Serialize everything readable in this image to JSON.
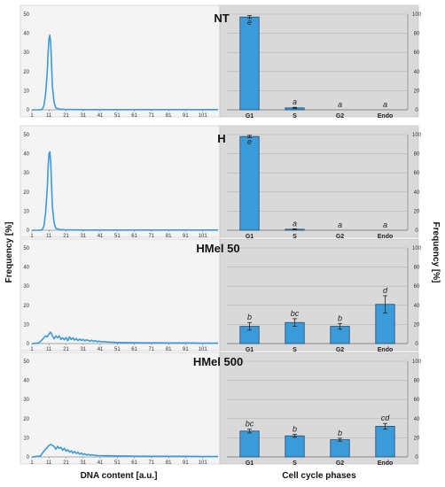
{
  "figure": {
    "y_axis_left": "Frequency [%]",
    "y_axis_right": "Frequency [%]",
    "x_axis_left": "DNA content [a.u.]",
    "x_axis_right": "Cell cycle phases"
  },
  "colors": {
    "series": "#3b9ad8",
    "bar_fill": "#3b9ad8",
    "bar_stroke": "#1d4f77",
    "left_bg": "#f4f4f4",
    "right_bg": "#d9d9d9",
    "grid": "#b3b3b3"
  },
  "chart_data": [
    {
      "type": "line",
      "title": "",
      "xlim": [
        1,
        110
      ],
      "ylim": [
        0,
        50
      ],
      "x_ticks": [
        "1",
        "11",
        "21",
        "31",
        "41",
        "51",
        "61",
        "71",
        "81",
        "91",
        "101"
      ],
      "y_ticks": [
        "0",
        "10",
        "20",
        "30",
        "40",
        "50"
      ],
      "series": [
        {
          "x": [
            1,
            6,
            7,
            8,
            9,
            10,
            10.5,
            11,
            11.5,
            12,
            12.5,
            13,
            14,
            15,
            17,
            20,
            30,
            50,
            110
          ],
          "y": [
            0,
            0,
            0.3,
            2,
            8,
            20,
            30,
            37,
            39,
            35,
            24,
            12,
            4,
            1,
            0.4,
            0.2,
            0.1,
            0.1,
            0.1
          ]
        }
      ]
    },
    {
      "type": "bar",
      "title": "NT",
      "categories": [
        "G1",
        "S",
        "G2",
        "Endo"
      ],
      "values": [
        97,
        2,
        0,
        0
      ],
      "errors": [
        1.5,
        0.6,
        0,
        0
      ],
      "significance": [
        "e",
        "a",
        "a",
        "a"
      ],
      "ylim": [
        0,
        100
      ],
      "y_ticks": [
        "0",
        "20",
        "40",
        "60",
        "80",
        "100"
      ]
    },
    {
      "type": "line",
      "title": "",
      "xlim": [
        1,
        110
      ],
      "ylim": [
        0,
        50
      ],
      "x_ticks": [
        "1",
        "11",
        "21",
        "31",
        "41",
        "51",
        "61",
        "71",
        "81",
        "91",
        "101"
      ],
      "y_ticks": [
        "0",
        "10",
        "20",
        "30",
        "40",
        "50"
      ],
      "series": [
        {
          "x": [
            1,
            6,
            7,
            8,
            9,
            10,
            10.5,
            11,
            11.5,
            12,
            12.5,
            13,
            14,
            15,
            17,
            20,
            30,
            50,
            110
          ],
          "y": [
            0,
            0,
            0.3,
            2,
            9,
            22,
            33,
            40,
            41,
            36,
            24,
            12,
            4,
            1,
            0.4,
            0.2,
            0.1,
            0.1,
            0.1
          ]
        }
      ]
    },
    {
      "type": "bar",
      "title": "H",
      "categories": [
        "G1",
        "S",
        "G2",
        "Endo"
      ],
      "values": [
        98,
        1,
        0,
        0
      ],
      "errors": [
        1.2,
        0.5,
        0,
        0
      ],
      "significance": [
        "e",
        "a",
        "a",
        "a"
      ],
      "ylim": [
        0,
        100
      ],
      "y_ticks": [
        "0",
        "20",
        "40",
        "60",
        "80",
        "100"
      ]
    },
    {
      "type": "line",
      "title": "",
      "xlim": [
        1,
        110
      ],
      "ylim": [
        0,
        50
      ],
      "x_ticks": [
        "1",
        "11",
        "21",
        "31",
        "41",
        "51",
        "61",
        "71",
        "81",
        "91",
        "101"
      ],
      "y_ticks": [
        "0",
        "10",
        "20",
        "30",
        "40",
        "50"
      ],
      "series": [
        {
          "x": [
            1,
            5,
            7,
            9,
            10,
            11,
            12,
            13,
            14,
            15,
            16,
            17,
            18,
            19,
            20,
            21,
            22,
            23,
            24,
            25,
            26,
            27,
            28,
            29,
            30,
            31,
            32,
            33,
            34,
            35,
            36,
            37,
            38,
            39,
            40,
            42,
            44,
            46,
            48,
            50,
            55,
            60,
            65,
            70,
            75,
            80,
            85,
            90,
            95,
            100,
            105,
            110
          ],
          "y": [
            0,
            0.3,
            2,
            4,
            3.5,
            5,
            6,
            4,
            2.5,
            4,
            3,
            4,
            2.2,
            3,
            2,
            3.2,
            1.5,
            3.5,
            2.1,
            3,
            1.8,
            2.6,
            1.5,
            2.4,
            1.6,
            2.2,
            1.4,
            2,
            1.6,
            1.2,
            1.8,
            1.1,
            1.5,
            1,
            1.2,
            1,
            0.9,
            0.8,
            0.7,
            0.6,
            0.5,
            0.5,
            0.4,
            0.4,
            0.4,
            0.3,
            0.3,
            0.3,
            0.3,
            0.2,
            0.2,
            0.2
          ]
        }
      ]
    },
    {
      "type": "bar",
      "title": "HMel 50",
      "categories": [
        "G1",
        "S",
        "G2",
        "Endo"
      ],
      "values": [
        18,
        22,
        18,
        41
      ],
      "errors": [
        4,
        4,
        3,
        9
      ],
      "significance": [
        "b",
        "bc",
        "b",
        "d"
      ],
      "ylim": [
        0,
        100
      ],
      "y_ticks": [
        "0",
        "20",
        "40",
        "60",
        "80",
        "100"
      ]
    },
    {
      "type": "line",
      "title": "",
      "xlim": [
        1,
        110
      ],
      "ylim": [
        0,
        50
      ],
      "x_ticks": [
        "1",
        "11",
        "21",
        "31",
        "41",
        "51",
        "61",
        "71",
        "81",
        "91",
        "101"
      ],
      "y_ticks": [
        "0",
        "10",
        "20",
        "30",
        "40",
        "50"
      ],
      "series": [
        {
          "x": [
            1,
            6,
            8,
            10,
            11,
            12,
            13,
            14,
            15,
            16,
            17,
            18,
            19,
            20,
            21,
            22,
            23,
            24,
            25,
            26,
            27,
            28,
            29,
            30,
            31,
            32,
            33,
            34,
            35,
            36,
            38,
            40,
            45,
            50,
            55,
            60,
            70,
            80,
            90,
            100,
            110
          ],
          "y": [
            0,
            0.5,
            3,
            5,
            6,
            6.5,
            6,
            5.5,
            4,
            5.5,
            4.5,
            5,
            3.5,
            4.5,
            3,
            3.8,
            2.5,
            3.2,
            2,
            2.8,
            1.8,
            2.4,
            1.4,
            2,
            1.2,
            1.6,
            1,
            1.3,
            0.9,
            1.1,
            0.8,
            0.7,
            0.6,
            0.5,
            0.5,
            0.4,
            0.3,
            0.3,
            0.3,
            0.2,
            0.2
          ]
        }
      ]
    },
    {
      "type": "bar",
      "title": "HMel 500",
      "categories": [
        "G1",
        "S",
        "G2",
        "Endo"
      ],
      "values": [
        27,
        22,
        18,
        32
      ],
      "errors": [
        2,
        1.5,
        1.5,
        3
      ],
      "significance": [
        "bc",
        "b",
        "b",
        "cd"
      ],
      "ylim": [
        0,
        100
      ],
      "y_ticks": [
        "0",
        "20",
        "40",
        "60",
        "80",
        "100"
      ]
    }
  ]
}
